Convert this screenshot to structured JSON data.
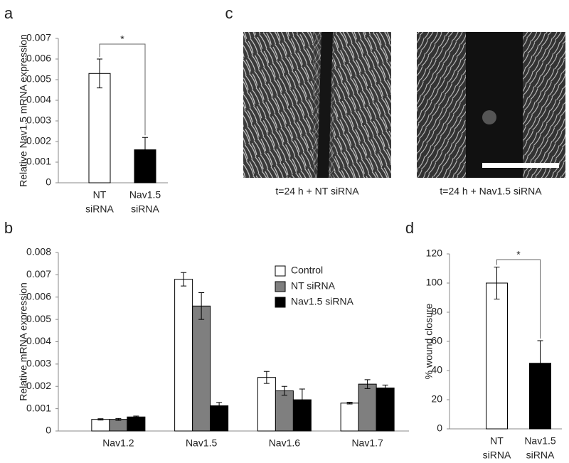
{
  "chart_data": [
    {
      "type": "bar",
      "panel": "a",
      "ylabel": "Relative Nav1.5 mRNA expression",
      "categories": [
        [
          "NT",
          "siRNA"
        ],
        [
          "Nav1.5",
          "siRNA"
        ]
      ],
      "values": [
        0.0053,
        0.0016
      ],
      "errors": [
        0.0007,
        0.0006
      ],
      "colors": [
        "#ffffff",
        "#000000"
      ],
      "ylim": [
        0,
        0.007
      ],
      "yticks": [
        0,
        0.001,
        0.002,
        0.003,
        0.004,
        0.005,
        0.006,
        0.007
      ],
      "significance": "*"
    },
    {
      "type": "grouped-bar",
      "panel": "b",
      "ylabel": "Relative mRNA expression",
      "categories": [
        "Nav1.2",
        "Nav1.5",
        "Nav1.6",
        "Nav1.7"
      ],
      "series": [
        {
          "name": "Control",
          "color": "#ffffff",
          "values": [
            0.00052,
            0.0068,
            0.0024,
            0.00125
          ],
          "errors": [
            3e-05,
            0.0003,
            0.00027,
            4e-05
          ]
        },
        {
          "name": "NT siRNA",
          "color": "#7f7f7f",
          "values": [
            0.00052,
            0.0056,
            0.0018,
            0.0021
          ],
          "errors": [
            4e-05,
            0.0006,
            0.0002,
            0.0002
          ]
        },
        {
          "name": "Nav1.5 siRNA",
          "color": "#000000",
          "values": [
            0.00063,
            0.00113,
            0.0014,
            0.00193
          ],
          "errors": [
            4e-05,
            0.00015,
            0.00048,
            0.00013
          ]
        }
      ],
      "ylim": [
        0,
        0.008
      ],
      "yticks": [
        0,
        0.001,
        0.002,
        0.003,
        0.004,
        0.005,
        0.006,
        0.007,
        0.008
      ]
    },
    {
      "type": "bar",
      "panel": "d",
      "ylabel": "% wound closure",
      "categories": [
        [
          "NT",
          "siRNA"
        ],
        [
          "Nav1.5",
          "siRNA"
        ]
      ],
      "values": [
        100,
        45
      ],
      "errors": [
        11,
        15.5
      ],
      "colors": [
        "#ffffff",
        "#000000"
      ],
      "ylim": [
        0,
        120
      ],
      "yticks": [
        0,
        20,
        40,
        60,
        80,
        100,
        120
      ],
      "significance": "*"
    }
  ],
  "images": {
    "panel": "c",
    "captions": [
      "t=24 h + NT siRNA",
      "t=24 h + Nav1.5 siRNA"
    ]
  }
}
